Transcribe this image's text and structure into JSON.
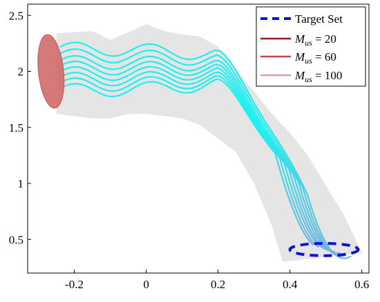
{
  "chart_data": {
    "type": "line",
    "title": "",
    "xlabel": "",
    "ylabel": "",
    "xlim": [
      -0.33,
      0.62
    ],
    "ylim": [
      0.2,
      2.6
    ],
    "x_ticks": [
      -0.2,
      0,
      0.2,
      0.4,
      0.6
    ],
    "x_tick_labels": [
      "-0.2",
      "0",
      "0.2",
      "0.4",
      "0.6"
    ],
    "y_ticks": [
      0.5,
      1,
      1.5,
      2,
      2.5
    ],
    "y_tick_labels": [
      "0.5",
      "1",
      "1.5",
      "2",
      "2.5"
    ],
    "grid": false,
    "legend_position": "top-right",
    "legend": [
      {
        "label": "Target Set",
        "style": "dashed",
        "color": "#0a14d6"
      },
      {
        "label_main": "M",
        "label_sub": "us",
        "label_rest": " = 20",
        "style": "solid",
        "color": "#a01418"
      },
      {
        "label_main": "M",
        "label_sub": "us",
        "label_rest": " = 60",
        "style": "solid",
        "color": "#cc4048"
      },
      {
        "label_main": "M",
        "label_sub": "us",
        "label_rest": " = 100",
        "style": "solid",
        "color": "#d9a0a4"
      }
    ],
    "initial_set": {
      "center": [
        -0.265,
        2.0
      ],
      "rx": 0.035,
      "ry": 0.33,
      "rotation_deg": -6,
      "color": "#d06a6a"
    },
    "target_set": {
      "center": [
        0.495,
        0.41
      ],
      "rx": 0.095,
      "ry": 0.055,
      "color": "#0a14d6"
    },
    "reach_tube": {
      "color": "#e5e5e5",
      "upper": [
        [
          -0.25,
          2.34
        ],
        [
          -0.2,
          2.35
        ],
        [
          -0.15,
          2.36
        ],
        [
          -0.1,
          2.28
        ],
        [
          -0.05,
          2.35
        ],
        [
          0.0,
          2.42
        ],
        [
          0.05,
          2.36
        ],
        [
          0.1,
          2.33
        ],
        [
          0.15,
          2.31
        ],
        [
          0.2,
          2.22
        ],
        [
          0.25,
          2.02
        ],
        [
          0.3,
          1.82
        ],
        [
          0.35,
          1.62
        ],
        [
          0.4,
          1.45
        ],
        [
          0.45,
          1.25
        ],
        [
          0.5,
          0.98
        ],
        [
          0.55,
          0.72
        ],
        [
          0.58,
          0.52
        ],
        [
          0.6,
          0.38
        ]
      ],
      "lower": [
        [
          0.38,
          0.3
        ],
        [
          0.35,
          0.62
        ],
        [
          0.3,
          1.0
        ],
        [
          0.25,
          1.28
        ],
        [
          0.2,
          1.4
        ],
        [
          0.15,
          1.52
        ],
        [
          0.1,
          1.58
        ],
        [
          0.05,
          1.6
        ],
        [
          0.0,
          1.62
        ],
        [
          -0.05,
          1.62
        ],
        [
          -0.1,
          1.58
        ],
        [
          -0.15,
          1.58
        ],
        [
          -0.2,
          1.6
        ],
        [
          -0.25,
          1.62
        ]
      ]
    },
    "trajectory_color": "#1ef0ee",
    "trajectory_end_color": "#7aaee0",
    "trajectory_offsets": [
      0.2,
      0.14,
      0.08,
      0.03,
      -0.02,
      -0.07,
      -0.12,
      -0.17
    ],
    "trajectory_end_x": [
      0.57,
      0.555,
      0.54,
      0.525,
      0.51,
      0.495,
      0.48,
      0.465
    ],
    "trajectory_end_y": [
      0.35,
      0.36,
      0.38,
      0.39,
      0.4,
      0.42,
      0.43,
      0.45
    ]
  }
}
